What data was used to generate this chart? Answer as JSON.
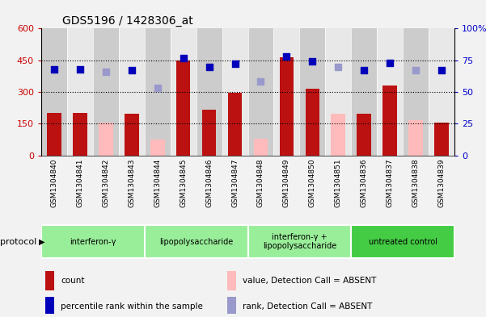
{
  "title": "GDS5196 / 1428306_at",
  "samples": [
    "GSM1304840",
    "GSM1304841",
    "GSM1304842",
    "GSM1304843",
    "GSM1304844",
    "GSM1304845",
    "GSM1304846",
    "GSM1304847",
    "GSM1304848",
    "GSM1304849",
    "GSM1304850",
    "GSM1304851",
    "GSM1304836",
    "GSM1304837",
    "GSM1304838",
    "GSM1304839"
  ],
  "count_values": [
    200,
    202,
    null,
    195,
    null,
    450,
    215,
    295,
    null,
    465,
    315,
    null,
    195,
    330,
    null,
    155
  ],
  "count_absent": [
    null,
    null,
    155,
    null,
    75,
    null,
    null,
    null,
    80,
    null,
    null,
    195,
    null,
    null,
    165,
    null
  ],
  "rank_values": [
    68,
    68,
    null,
    67,
    null,
    77,
    70,
    72,
    null,
    78,
    74,
    null,
    67,
    73,
    null,
    67
  ],
  "rank_absent": [
    null,
    null,
    66,
    null,
    53,
    null,
    null,
    null,
    58,
    null,
    null,
    70,
    null,
    null,
    67,
    null
  ],
  "absent_flags": [
    false,
    false,
    true,
    false,
    true,
    false,
    false,
    false,
    true,
    false,
    false,
    true,
    false,
    false,
    true,
    false
  ],
  "groups": [
    {
      "label": "interferon-γ",
      "start": 0,
      "end": 4
    },
    {
      "label": "lipopolysaccharide",
      "start": 4,
      "end": 8
    },
    {
      "label": "interferon-γ +\nlipopolysaccharide",
      "start": 8,
      "end": 12
    },
    {
      "label": "untreated control",
      "start": 12,
      "end": 16
    }
  ],
  "group_colors": [
    "#99ee99",
    "#99ee99",
    "#99ee99",
    "#44cc44"
  ],
  "ylim_left": [
    0,
    600
  ],
  "ylim_right": [
    0,
    100
  ],
  "yticks_left": [
    0,
    150,
    300,
    450,
    600
  ],
  "yticks_right": [
    0,
    25,
    50,
    75,
    100
  ],
  "yticklabels_left": [
    "0",
    "150",
    "300",
    "450",
    "600"
  ],
  "yticklabels_right": [
    "0",
    "25",
    "50",
    "75",
    "100%"
  ],
  "bar_color_present": "#bb1111",
  "bar_color_absent": "#ffbbbb",
  "dot_color_present": "#0000bb",
  "dot_color_absent": "#9999cc",
  "dot_size": 35,
  "bar_width": 0.55,
  "legend_items": [
    {
      "color": "#bb1111",
      "label": "count"
    },
    {
      "color": "#0000bb",
      "label": "percentile rank within the sample"
    },
    {
      "color": "#ffbbbb",
      "label": "value, Detection Call = ABSENT"
    },
    {
      "color": "#9999cc",
      "label": "rank, Detection Call = ABSENT"
    }
  ]
}
